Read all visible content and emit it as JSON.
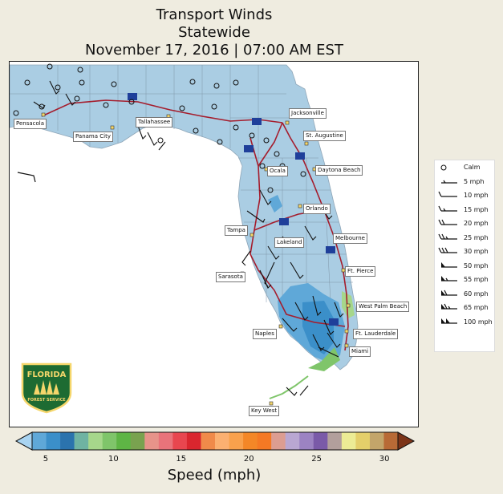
{
  "title": {
    "line1": "Transport Winds",
    "line2": "Statewide",
    "line3": "November 17, 2016 | 07:00 AM EST"
  },
  "map": {
    "land_color": "#aacde3",
    "road_color": "#a51d2d",
    "interstate_shields": [
      "10",
      "10",
      "10",
      "95",
      "95",
      "4",
      "95",
      "75",
      "75"
    ],
    "cities": [
      "Pensacola",
      "Panama City",
      "Tallahassee",
      "Jacksonville",
      "St. Augustine",
      "Ocala",
      "Daytona Beach",
      "Orlando",
      "Tampa",
      "Lakeland",
      "Melbourne",
      "Sarasota",
      "Ft. Pierce",
      "West Palm Beach",
      "Naples",
      "Ft. Lauderdale",
      "Miami",
      "Key West"
    ]
  },
  "legend": {
    "items": [
      {
        "label": "Calm",
        "speed": 0
      },
      {
        "label": "5 mph",
        "speed": 5
      },
      {
        "label": "10 mph",
        "speed": 10
      },
      {
        "label": "15 mph",
        "speed": 15
      },
      {
        "label": "20 mph",
        "speed": 20
      },
      {
        "label": "25 mph",
        "speed": 25
      },
      {
        "label": "30 mph",
        "speed": 30
      },
      {
        "label": "50 mph",
        "speed": 50
      },
      {
        "label": "55 mph",
        "speed": 55
      },
      {
        "label": "60 mph",
        "speed": 60
      },
      {
        "label": "65 mph",
        "speed": 65
      },
      {
        "label": "100 mph",
        "speed": 100
      }
    ]
  },
  "colorbar": {
    "label": "Speed (mph)",
    "min": 4,
    "max": 31,
    "ticks": [
      "5",
      "10",
      "15",
      "20",
      "25",
      "30"
    ],
    "colors": [
      "#5fa8d8",
      "#3b8fc9",
      "#2b73ad",
      "#6fb3a2",
      "#a6d78b",
      "#7fc56a",
      "#5eb545",
      "#79a24f",
      "#e7938a",
      "#e9737a",
      "#e8464f",
      "#d9262e",
      "#f08a4a",
      "#fbb071",
      "#f9a14c",
      "#f48727",
      "#f57924",
      "#dc9d91",
      "#b9a7d2",
      "#9c83c2",
      "#7a5aa8",
      "#b29f9c",
      "#ecec95",
      "#e4cf6a",
      "#c3a56a",
      "#b86a36"
    ]
  },
  "logo": {
    "line1": "FLORIDA",
    "line2": "FOREST SERVICE"
  }
}
